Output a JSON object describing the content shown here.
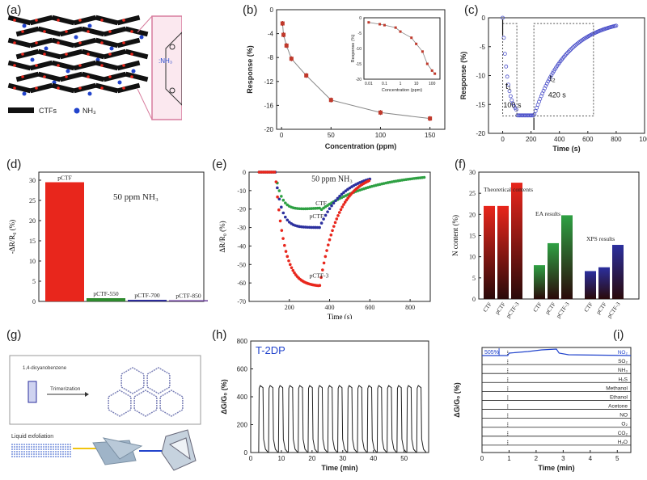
{
  "labels": {
    "a": "(a)",
    "b": "(b)",
    "c": "(c)",
    "d": "(d)",
    "e": "(e)",
    "f": "(f)",
    "g": "(g)",
    "h": "(h)",
    "i": "(i)"
  },
  "panel_a": {
    "legend_ctf": "CTFs",
    "legend_nh3": "NH₃",
    "nh3_tag": ":NH₃"
  },
  "panel_g": {
    "monomer": "1,4-dicyanobenzene",
    "step": "Trimerization",
    "exfoliation": "Liquid exfoliation"
  },
  "chart_data": [
    {
      "id": "b",
      "type": "line",
      "xlabel": "Concentration (ppm)",
      "ylabel": "Response (%)",
      "xlim": [
        0,
        160
      ],
      "ylim": [
        -20,
        0
      ],
      "xticks": [
        "0",
        "50",
        "100",
        "150"
      ],
      "yticks": [
        "0",
        "-4",
        "-8",
        "-12",
        "-16",
        "-20"
      ],
      "x": [
        1,
        2,
        5,
        10,
        25,
        50,
        100,
        150
      ],
      "values": [
        -2.3,
        -4.2,
        -6.0,
        -8.2,
        -11.0,
        -15.1,
        -17.2,
        -18.2
      ],
      "inset": {
        "type": "line",
        "xlabel": "Concentration (ppm)",
        "ylabel": "Response (%)",
        "xscale": "log",
        "xticks": [
          "0.01",
          "0.1",
          "1",
          "10",
          "100"
        ],
        "yticks": [
          "0",
          "-5",
          "-10",
          "-15",
          "-20"
        ],
        "x": [
          0.01,
          0.05,
          0.1,
          0.5,
          1,
          5,
          10,
          25,
          50,
          100,
          150
        ],
        "values": [
          -1.5,
          -2.1,
          -2.4,
          -3.2,
          -4.5,
          -6.5,
          -8.5,
          -11,
          -15,
          -17.2,
          -18.2
        ]
      }
    },
    {
      "id": "c",
      "type": "line",
      "xlabel": "Time (s)",
      "ylabel": "Response (%)",
      "xlim": [
        -100,
        1000
      ],
      "ylim": [
        -20,
        0
      ],
      "xticks": [
        "0",
        "200",
        "400",
        "600",
        "800",
        "100"
      ],
      "yticks": [
        "0",
        "-5",
        "-10",
        "-15",
        "-20"
      ],
      "annotations": {
        "t1": "t₁",
        "t1_val": "100 s",
        "t2": "t₂",
        "t2_val": "420 s"
      }
    },
    {
      "id": "d",
      "type": "bar",
      "ylabel": "-ΔR/R₀ (%)",
      "annotation": "50 ppm NH₃",
      "ylim": [
        0,
        32
      ],
      "yticks": [
        "0",
        "5",
        "10",
        "15",
        "20",
        "25",
        "30"
      ],
      "categories": [
        "pCTF",
        "pCTF-550",
        "pCTF-700",
        "pCTF-850"
      ],
      "values": [
        29.5,
        0.8,
        0.4,
        0.3
      ],
      "colors": [
        "#e8261c",
        "#2e8b2e",
        "#2c2c9a",
        "#6a3d9a"
      ]
    },
    {
      "id": "e",
      "type": "scatter",
      "xlabel": "Time (s)",
      "ylabel": "ΔR/R₀ (%)",
      "annotation": "50 ppm NH₃",
      "xlim": [
        0,
        900
      ],
      "ylim": [
        -70,
        0
      ],
      "xticks": [
        "200",
        "400",
        "600",
        "800"
      ],
      "yticks": [
        "0",
        "-10",
        "-20",
        "-30",
        "-40",
        "-50",
        "-60",
        "-70"
      ],
      "series": [
        {
          "name": "CTF",
          "color": "#2ea043"
        },
        {
          "name": "pCTF",
          "color": "#2b2f9e"
        },
        {
          "name": "pCTF-3",
          "color": "#e8261c"
        }
      ]
    },
    {
      "id": "f",
      "type": "bar",
      "ylabel": "N content (%)",
      "ylim": [
        0,
        30
      ],
      "yticks": [
        "0",
        "5",
        "10",
        "15",
        "20",
        "25",
        "30"
      ],
      "groups": [
        {
          "name": "Theoretical contents",
          "categories": [
            "CTF",
            "pCTF",
            "pCTF-3"
          ],
          "values": [
            22,
            22,
            27.5
          ],
          "color": "#e8261c"
        },
        {
          "name": "EA results",
          "categories": [
            "CTF",
            "pCTF",
            "pCTF-3"
          ],
          "values": [
            8,
            13.2,
            19.8
          ],
          "color": "#2ea043"
        },
        {
          "name": "XPS results",
          "categories": [
            "CTF",
            "pCTF",
            "pCTF-3"
          ],
          "values": [
            6.6,
            7.5,
            12.8
          ],
          "color": "#2b2f9e"
        }
      ]
    },
    {
      "id": "h",
      "type": "line",
      "xlabel": "Time (min)",
      "ylabel": "ΔG/G₀ (%)",
      "title": "T-2DP",
      "xlim": [
        0,
        58
      ],
      "ylim": [
        0,
        800
      ],
      "xticks": [
        "0",
        "10",
        "20",
        "30",
        "40",
        "50"
      ],
      "yticks": [
        "0",
        "200",
        "400",
        "600",
        "800"
      ],
      "cycles": 17,
      "peak": 480
    },
    {
      "id": "i",
      "type": "line",
      "xlabel": "Time (min)",
      "ylabel": "ΔG/G₀ (%)",
      "annotation": "505%",
      "xlim": [
        0,
        5.5
      ],
      "xticks": [
        "0",
        "1",
        "2",
        "3",
        "4",
        "5"
      ],
      "series": [
        "NO₂",
        "SO₂",
        "NH₃",
        "H₂S",
        "Methanol",
        "Ethanol",
        "Acetone",
        "NO",
        "O₂",
        "CO₂",
        "H₂O"
      ]
    }
  ]
}
